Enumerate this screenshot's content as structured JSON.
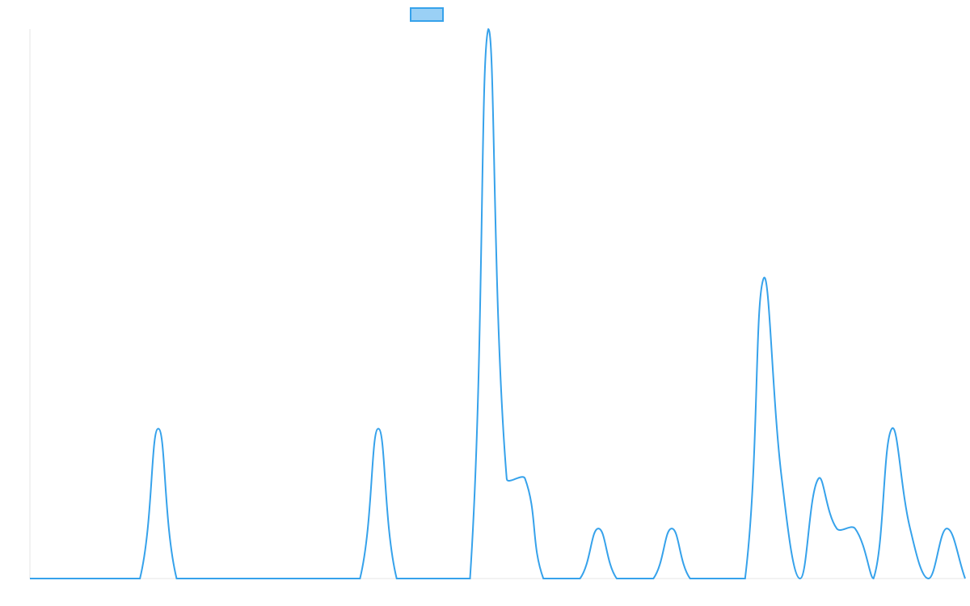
{
  "chart_data": {
    "type": "line",
    "categories": [
      null,
      null,
      null,
      null,
      null,
      null,
      null,
      null,
      null,
      null,
      null,
      null,
      null,
      null,
      null,
      null,
      null,
      null,
      null,
      null,
      null,
      null,
      null,
      null,
      null,
      null,
      null,
      null,
      null,
      null,
      null,
      null,
      null,
      null,
      null,
      null,
      null,
      null,
      null,
      null,
      null,
      null,
      null,
      null,
      null,
      null,
      null,
      null,
      null,
      null,
      null,
      null
    ],
    "series": [
      {
        "color": "#36a2eb",
        "values": [
          0,
          0,
          0,
          0,
          0,
          0,
          0,
          3,
          0,
          0,
          0,
          0,
          0,
          0,
          0,
          0,
          0,
          0,
          0,
          3,
          0,
          0,
          0,
          0,
          0,
          11,
          2,
          2,
          0,
          0,
          0,
          1,
          0,
          0,
          0,
          1,
          0,
          0,
          0,
          0,
          6,
          2,
          0,
          2,
          1,
          1,
          0,
          3,
          1,
          0,
          1,
          0
        ]
      }
    ],
    "ylim": [
      0,
      11
    ],
    "legend": "top"
  }
}
